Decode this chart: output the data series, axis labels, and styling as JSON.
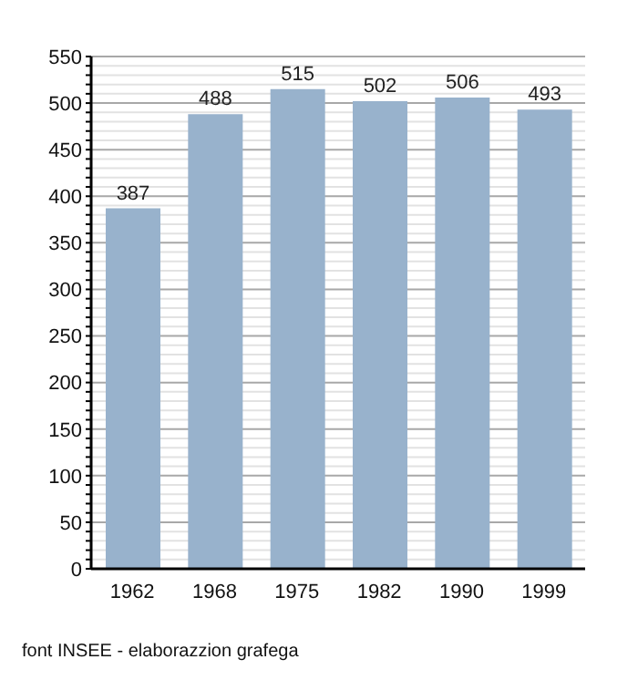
{
  "chart_data": {
    "type": "bar",
    "categories": [
      "1962",
      "1968",
      "1975",
      "1982",
      "1990",
      "1999"
    ],
    "values": [
      387,
      488,
      515,
      502,
      506,
      493
    ],
    "color": "#98b2cc",
    "data_labels": true,
    "grid": "y",
    "ylim": [
      0,
      550
    ],
    "yticks": [
      0,
      {
        "value": 10,
        "label": null
      },
      {
        "value": 20,
        "label": null
      },
      {
        "value": 30,
        "label": null
      },
      {
        "value": 40,
        "label": null
      },
      50,
      {
        "value": 60,
        "label": null
      },
      {
        "value": 70,
        "label": null
      },
      {
        "value": 80,
        "label": null
      },
      {
        "value": 90,
        "label": null
      },
      100,
      {
        "value": 110,
        "label": null
      },
      {
        "value": 120,
        "label": null
      },
      {
        "value": 130,
        "label": null
      },
      {
        "value": 140,
        "label": null
      },
      150,
      {
        "value": 160,
        "label": null
      },
      {
        "value": 170,
        "label": null
      },
      {
        "value": 180,
        "label": null
      },
      {
        "value": 190,
        "label": null
      },
      200,
      {
        "value": 210,
        "label": null
      },
      {
        "value": 220,
        "label": null
      },
      {
        "value": 230,
        "label": null
      },
      {
        "value": 240,
        "label": null
      },
      250,
      {
        "value": 260,
        "label": null
      },
      {
        "value": 270,
        "label": null
      },
      {
        "value": 280,
        "label": null
      },
      {
        "value": 290,
        "label": null
      },
      300,
      {
        "value": 310,
        "label": null
      },
      {
        "value": 320,
        "label": null
      },
      {
        "value": 330,
        "label": null
      },
      {
        "value": 340,
        "label": null
      },
      350,
      {
        "value": 360,
        "label": null
      },
      {
        "value": 370,
        "label": null
      },
      {
        "value": 380,
        "label": null
      },
      {
        "value": 390,
        "label": null
      },
      400,
      {
        "value": 410,
        "label": null
      },
      {
        "value": 420,
        "label": null
      },
      {
        "value": 430,
        "label": null
      },
      {
        "value": 440,
        "label": null
      },
      450,
      {
        "value": 460,
        "label": null
      },
      {
        "value": 470,
        "label": null
      },
      {
        "value": 480,
        "label": null
      },
      {
        "value": 490,
        "label": null
      },
      500,
      {
        "value": 510,
        "label": null
      },
      {
        "value": 520,
        "label": null
      },
      {
        "value": 530,
        "label": null
      },
      {
        "value": 540,
        "label": null
      },
      550
    ],
    "annotations": [
      "font INSEE - elaborazzion grafega"
    ]
  }
}
